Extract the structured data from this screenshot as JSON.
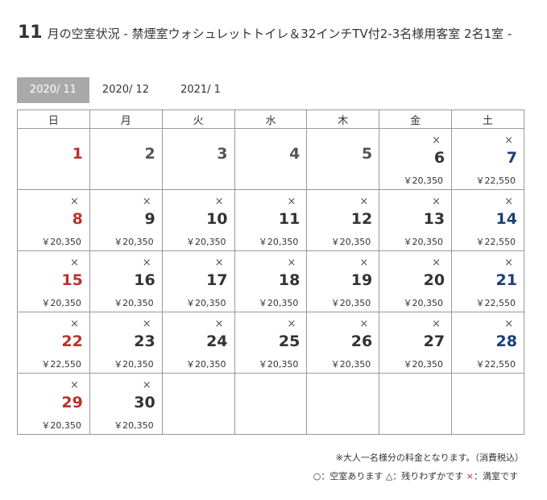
{
  "title": {
    "month": "11",
    "text": "月の空室状況 - 禁煙室ウォシュレットトイレ＆32インチTV付2-3名様用客室 2名1室 -"
  },
  "tabs": [
    {
      "label": "2020/ 11"
    },
    {
      "label": "2020/ 12"
    },
    {
      "label": "2021/ 1"
    }
  ],
  "weekdays": [
    "日",
    "月",
    "火",
    "水",
    "木",
    "金",
    "土"
  ],
  "weeks": [
    [
      {
        "day": "1",
        "mark": "",
        "price": ""
      },
      {
        "day": "2",
        "mark": "",
        "price": ""
      },
      {
        "day": "3",
        "mark": "",
        "price": ""
      },
      {
        "day": "4",
        "mark": "",
        "price": ""
      },
      {
        "day": "5",
        "mark": "",
        "price": ""
      },
      {
        "day": "6",
        "mark": "×",
        "price": "￥20,350"
      },
      {
        "day": "7",
        "mark": "×",
        "price": "￥22,550"
      }
    ],
    [
      {
        "day": "8",
        "mark": "×",
        "price": "￥20,350"
      },
      {
        "day": "9",
        "mark": "×",
        "price": "￥20,350"
      },
      {
        "day": "10",
        "mark": "×",
        "price": "￥20,350"
      },
      {
        "day": "11",
        "mark": "×",
        "price": "￥20,350"
      },
      {
        "day": "12",
        "mark": "×",
        "price": "￥20,350"
      },
      {
        "day": "13",
        "mark": "×",
        "price": "￥20,350"
      },
      {
        "day": "14",
        "mark": "×",
        "price": "￥22,550"
      }
    ],
    [
      {
        "day": "15",
        "mark": "×",
        "price": "￥20,350"
      },
      {
        "day": "16",
        "mark": "×",
        "price": "￥20,350"
      },
      {
        "day": "17",
        "mark": "×",
        "price": "￥20,350"
      },
      {
        "day": "18",
        "mark": "×",
        "price": "￥20,350"
      },
      {
        "day": "19",
        "mark": "×",
        "price": "￥20,350"
      },
      {
        "day": "20",
        "mark": "×",
        "price": "￥20,350"
      },
      {
        "day": "21",
        "mark": "×",
        "price": "￥22,550"
      }
    ],
    [
      {
        "day": "22",
        "mark": "×",
        "price": "￥22,550"
      },
      {
        "day": "23",
        "mark": "×",
        "price": "￥20,350"
      },
      {
        "day": "24",
        "mark": "×",
        "price": "￥20,350"
      },
      {
        "day": "25",
        "mark": "×",
        "price": "￥20,350"
      },
      {
        "day": "26",
        "mark": "×",
        "price": "￥20,350"
      },
      {
        "day": "27",
        "mark": "×",
        "price": "￥20,350"
      },
      {
        "day": "28",
        "mark": "×",
        "price": "￥22,550"
      }
    ],
    [
      {
        "day": "29",
        "mark": "×",
        "price": "￥20,350"
      },
      {
        "day": "30",
        "mark": "×",
        "price": "￥20,350"
      },
      null,
      null,
      null,
      null,
      null
    ]
  ],
  "colors": {
    "holiday_red": "#b8322c",
    "saturday_blue": "#1d3f78",
    "active_tab_bg": "#a9a9a9"
  },
  "notes": {
    "price_note": "※大人一名様分の料金となります。（消費税込）",
    "legend_prefix": "○：空室あります △：残りわずかです ",
    "legend_x": "×",
    "legend_suffix": "：満室です"
  }
}
